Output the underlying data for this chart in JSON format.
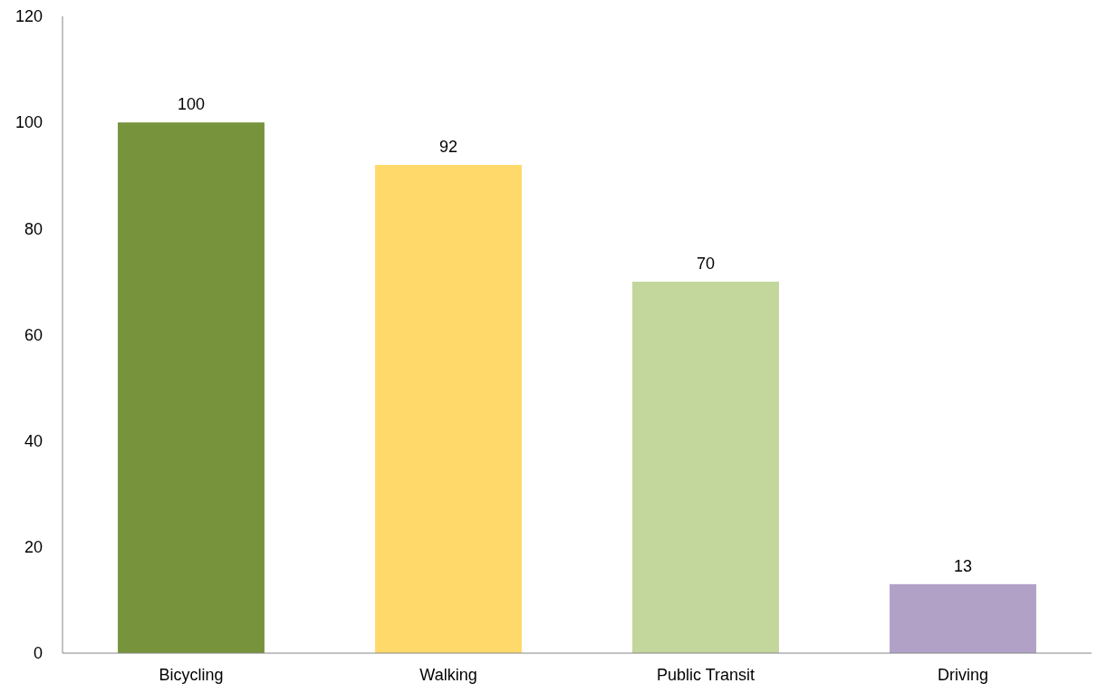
{
  "chart_data": {
    "type": "bar",
    "categories": [
      "Bicycling",
      "Walking",
      "Public Transit",
      "Driving"
    ],
    "values": [
      100,
      92,
      70,
      13
    ],
    "colors": [
      "#77933c",
      "#ffd96a",
      "#c3d69b",
      "#b2a1c7"
    ],
    "ylim": [
      0,
      120
    ],
    "yticks": [
      0,
      20,
      40,
      60,
      80,
      100,
      120
    ],
    "data_labels": true
  }
}
